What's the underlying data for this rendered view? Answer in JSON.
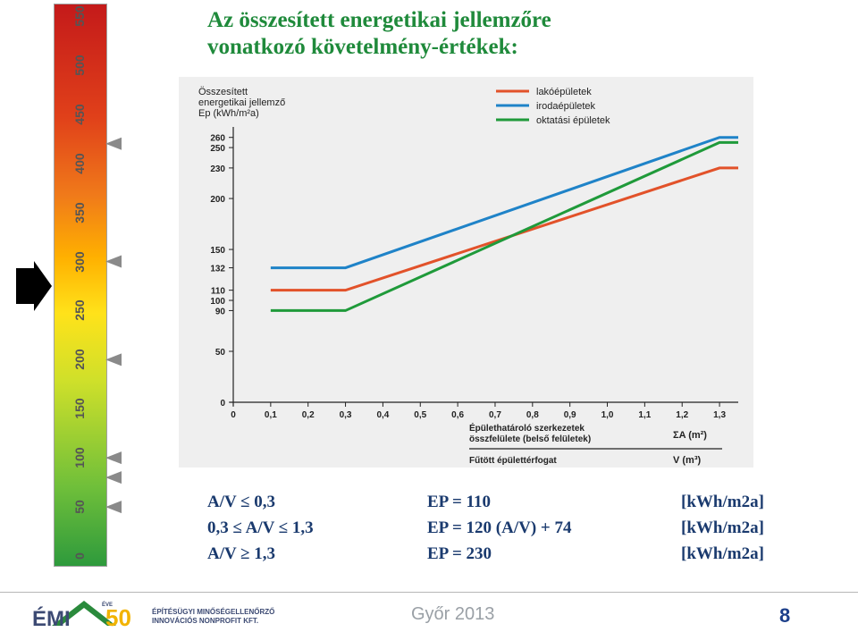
{
  "slide": {
    "title_line1": "Az összesített energetikai jellemzőre",
    "title_line2": "vonatkozó követelmény-értékek:"
  },
  "scale": {
    "labels": [
      "0",
      "50",
      "100",
      "150",
      "200",
      "250",
      "300",
      "350",
      "400",
      "450",
      "500",
      "550"
    ],
    "marker_values": [
      50,
      80,
      100,
      200,
      300,
      420
    ]
  },
  "chart_data": {
    "type": "line",
    "title_lines": [
      "Összesített",
      "energetikai jellemző",
      "Ep (kWh/m²a)"
    ],
    "xlabel_lines": [
      "Épülethatároló szerkezetek",
      "összfelülete (belső felületek)",
      "Fűtött épülettérfogat"
    ],
    "xlabel_right": [
      "ΣA (m²)",
      "V (m³)"
    ],
    "xlim": [
      0,
      1.35
    ],
    "ylim": [
      0,
      265
    ],
    "x_ticks": [
      "0",
      "0,1",
      "0,2",
      "0,3",
      "0,4",
      "0,5",
      "0,6",
      "0,7",
      "0,8",
      "0,9",
      "1,0",
      "1,1",
      "1,2",
      "1,3"
    ],
    "y_ticks": [
      0,
      50,
      90,
      100,
      110,
      132,
      150,
      200,
      230,
      250,
      260
    ],
    "series": [
      {
        "name": "lakóépületek",
        "color": "#e2522a",
        "x": [
          0.1,
          0.3,
          1.3,
          1.35
        ],
        "y": [
          110,
          110,
          230,
          230
        ]
      },
      {
        "name": "irodaépületek",
        "color": "#1f83c8",
        "x": [
          0.1,
          0.3,
          1.3,
          1.35
        ],
        "y": [
          132,
          132,
          260,
          260
        ]
      },
      {
        "name": "oktatási épületek",
        "color": "#1f9a3a",
        "x": [
          0.1,
          0.3,
          1.3,
          1.35
        ],
        "y": [
          90,
          90,
          255,
          255
        ]
      }
    ],
    "legend_position": "top-right"
  },
  "formulas": {
    "rows": [
      {
        "condition": "A/V ≤ 0,3",
        "equation": "EP = 110",
        "unit": "[kWh/m2a]"
      },
      {
        "condition": "0,3 ≤ A/V ≤ 1,3",
        "equation": "EP = 120 (A/V) + 74",
        "unit": "[kWh/m2a]"
      },
      {
        "condition": "A/V ≥ 1,3",
        "equation": "EP = 230",
        "unit": "[kWh/m2a]"
      }
    ]
  },
  "footer": {
    "logo_text": "ÉMI",
    "logo_number": "50",
    "logo_badge": "ÉVE",
    "org_line1": "ÉPÍTÉSÜGYI MINŐSÉGELLENŐRZŐ",
    "org_line2": "INNOVÁCIÓS NONPROFIT KFT.",
    "city_year": "Győr 2013",
    "page_number": "8"
  }
}
